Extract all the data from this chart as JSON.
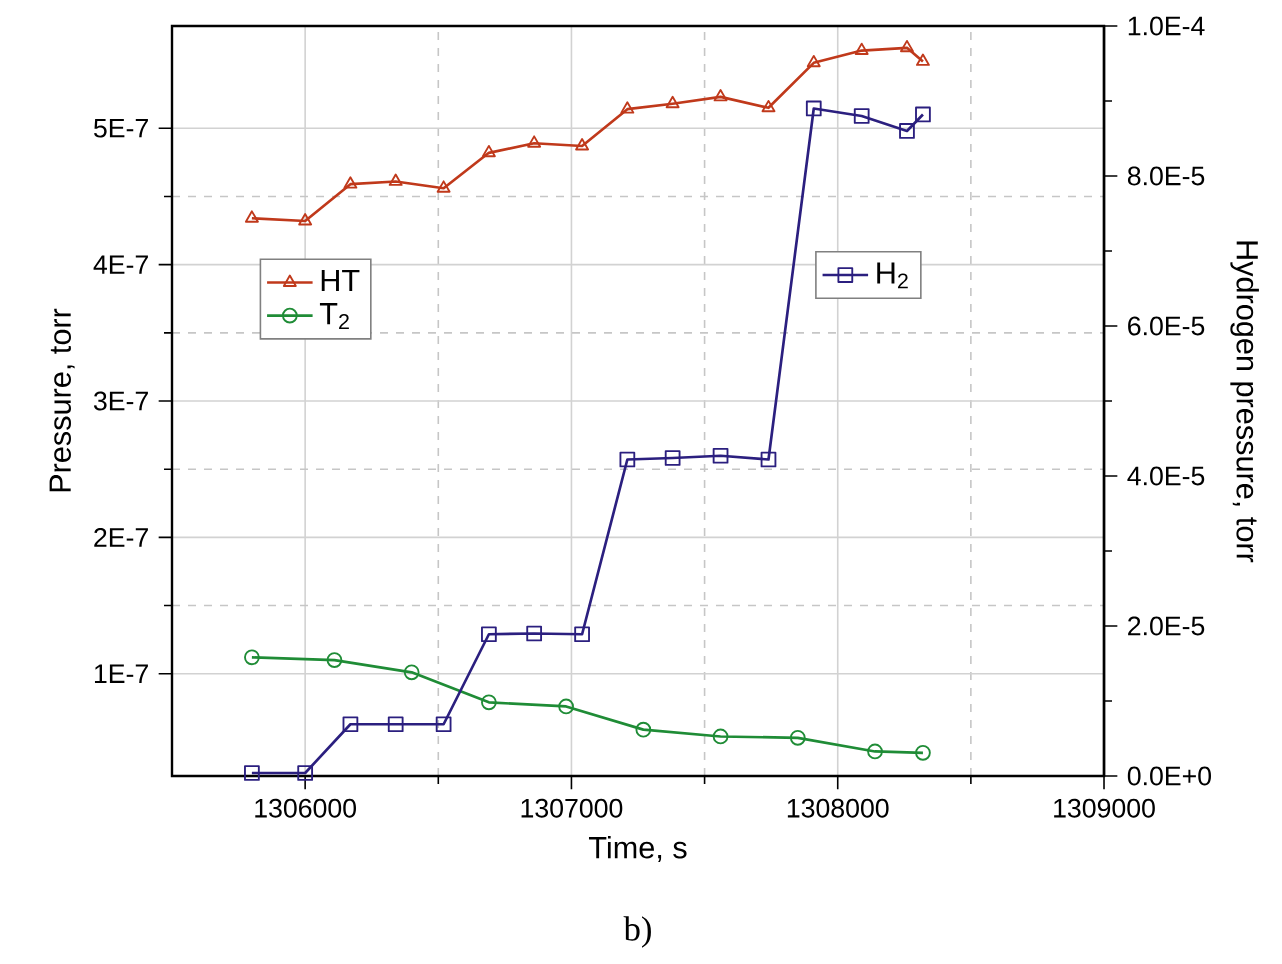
{
  "chart_data": {
    "type": "line",
    "xlabel": "Time, s",
    "ylabel": "Pressure, torr",
    "y2label": "Hydrogen pressure, torr",
    "annotations": [
      "b)"
    ],
    "xlim": [
      1305500,
      1309000
    ],
    "xticks": [
      1306000,
      1307000,
      1308000,
      1309000
    ],
    "ylim": [
      2.5e-08,
      5.75e-07
    ],
    "yticks": [
      {
        "value": 1e-07,
        "label": "1E-7"
      },
      {
        "value": 2e-07,
        "label": "2E-7"
      },
      {
        "value": 3e-07,
        "label": "3E-7"
      },
      {
        "value": 4e-07,
        "label": "4E-7"
      },
      {
        "value": 5e-07,
        "label": "5E-7"
      }
    ],
    "y2lim": [
      0,
      0.0001
    ],
    "y2ticks": [
      {
        "value": 0,
        "label": "0.0E+0"
      },
      {
        "value": 2e-05,
        "label": "2.0E-5"
      },
      {
        "value": 4e-05,
        "label": "4.0E-5"
      },
      {
        "value": 6e-05,
        "label": "6.0E-5"
      },
      {
        "value": 8e-05,
        "label": "8.0E-5"
      },
      {
        "value": 0.0001,
        "label": "1.0E-4"
      }
    ],
    "grid": true,
    "legend": "left",
    "line_style": "solid",
    "series": [
      {
        "name": "HT",
        "color": "#c0391b",
        "marker": "triangle",
        "x": [
          1305800,
          1306000,
          1306170,
          1306340,
          1306520,
          1306690,
          1306860,
          1307040,
          1307210,
          1307380,
          1307560,
          1307740,
          1307910,
          1308090,
          1308260,
          1308320
        ],
        "values": [
          4.34e-07,
          4.32e-07,
          4.59e-07,
          4.61e-07,
          4.56e-07,
          4.82e-07,
          4.89e-07,
          4.87e-07,
          5.14e-07,
          5.18e-07,
          5.23e-07,
          5.15e-07,
          5.48e-07,
          5.57e-07,
          5.59e-07,
          5.49e-07
        ]
      },
      {
        "name": "T$_{2}$",
        "color": "#1f8c36",
        "marker": "circle",
        "x": [
          1305800,
          1306110,
          1306400,
          1306690,
          1306980,
          1307270,
          1307560,
          1307850,
          1308140,
          1308320
        ],
        "values": [
          1.12e-07,
          1.1e-07,
          1.01e-07,
          7.9e-08,
          7.6e-08,
          5.9e-08,
          5.4e-08,
          5.3e-08,
          4.3e-08,
          4.2e-08
        ]
      },
      {
        "name": "H$_{2}$",
        "color": "#2b1f7f",
        "marker": "square",
        "axis": "y2",
        "x": [
          1305800,
          1306000,
          1306170,
          1306340,
          1306520,
          1306690,
          1306860,
          1307040,
          1307210,
          1307380,
          1307560,
          1307740,
          1307910,
          1308090,
          1308260,
          1308320
        ],
        "values": [
          4e-07,
          4e-07,
          6.9e-06,
          6.9e-06,
          6.9e-06,
          1.89e-05,
          1.9e-05,
          1.89e-05,
          4.22e-05,
          4.24e-05,
          4.27e-05,
          4.22e-05,
          8.9e-05,
          8.8e-05,
          8.6e-05,
          8.82e-05
        ]
      }
    ]
  }
}
